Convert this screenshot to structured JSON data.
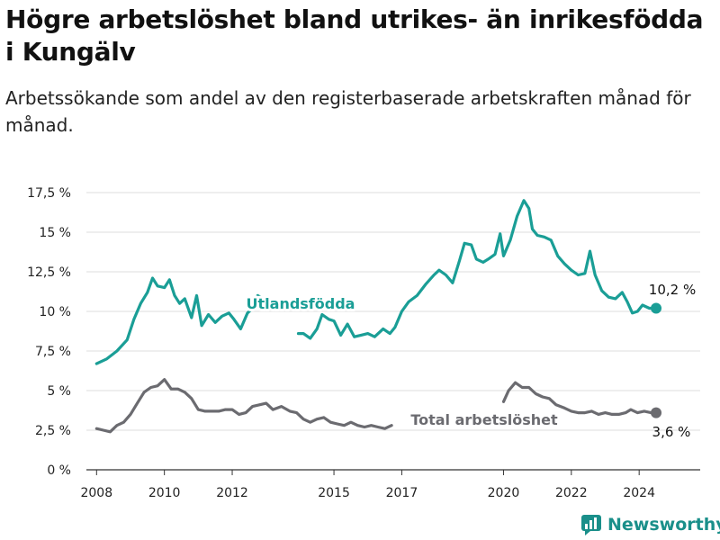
{
  "page": {
    "title": "Högre arbetslöshet bland utrikes- än inrikesfödda i Kungälv",
    "subtitle": "Arbetssökande som andel av den registerbaserade arbetskraften månad för månad."
  },
  "brand": {
    "name": "Newsworthy",
    "logo_icon": "bar-chart-bubble-icon",
    "color": "#1a8f8a"
  },
  "chart_data": {
    "type": "line",
    "title": "Högre arbetslöshet bland utrikes- än inrikesfödda i Kungälv",
    "subtitle": "Arbetssökande som andel av den registerbaserade arbetskraften månad för månad.",
    "xlabel": "",
    "ylabel": "",
    "x_ticks": [
      "2008",
      "2010",
      "2012",
      "2015",
      "2017",
      "2020",
      "2022",
      "2024"
    ],
    "y_ticks": [
      "0 %",
      "2,5 %",
      "5 %",
      "7,5 %",
      "10 %",
      "12,5 %",
      "15 %",
      "17,5 %"
    ],
    "xlim": [
      2007.7,
      2025.8
    ],
    "ylim": [
      0,
      17.5
    ],
    "grid": {
      "horizontal": true,
      "vertical": false
    },
    "legend": "inline labels",
    "series": [
      {
        "name": "Utlandsfödda",
        "color": "#1a9e96",
        "end_label": "10,2 %",
        "points": [
          [
            2008.0,
            6.7
          ],
          [
            2008.3,
            7.0
          ],
          [
            2008.6,
            7.5
          ],
          [
            2008.9,
            8.2
          ],
          [
            2009.1,
            9.5
          ],
          [
            2009.3,
            10.5
          ],
          [
            2009.5,
            11.2
          ],
          [
            2009.65,
            12.1
          ],
          [
            2009.8,
            11.6
          ],
          [
            2010.0,
            11.5
          ],
          [
            2010.15,
            12.0
          ],
          [
            2010.3,
            11.0
          ],
          [
            2010.45,
            10.5
          ],
          [
            2010.6,
            10.8
          ],
          [
            2010.8,
            9.6
          ],
          [
            2010.95,
            11.0
          ],
          [
            2011.1,
            9.1
          ],
          [
            2011.3,
            9.8
          ],
          [
            2011.5,
            9.3
          ],
          [
            2011.7,
            9.7
          ],
          [
            2011.9,
            9.9
          ],
          [
            2012.05,
            9.5
          ],
          [
            2012.25,
            8.9
          ],
          [
            2012.45,
            9.9
          ],
          [
            2012.6,
            10.2
          ],
          [
            2012.75,
            11.0
          ],
          [
            2012.9,
            10.8
          ]
        ]
      },
      {
        "name": "Utlandsfödda",
        "color": "#1a9e96",
        "points": [
          [
            2013.95,
            8.6
          ],
          [
            2014.1,
            8.6
          ],
          [
            2014.3,
            8.3
          ],
          [
            2014.5,
            8.9
          ],
          [
            2014.65,
            9.8
          ],
          [
            2014.85,
            9.5
          ],
          [
            2015.0,
            9.4
          ],
          [
            2015.2,
            8.5
          ],
          [
            2015.4,
            9.2
          ],
          [
            2015.6,
            8.4
          ],
          [
            2015.8,
            8.5
          ],
          [
            2016.0,
            8.6
          ],
          [
            2016.2,
            8.4
          ],
          [
            2016.45,
            8.9
          ],
          [
            2016.65,
            8.6
          ],
          [
            2016.8,
            9.0
          ],
          [
            2017.0,
            10.0
          ],
          [
            2017.2,
            10.6
          ],
          [
            2017.45,
            11.0
          ],
          [
            2017.7,
            11.7
          ],
          [
            2017.95,
            12.3
          ],
          [
            2018.1,
            12.6
          ],
          [
            2018.3,
            12.3
          ],
          [
            2018.5,
            11.8
          ],
          [
            2018.7,
            13.2
          ],
          [
            2018.85,
            14.3
          ],
          [
            2019.05,
            14.2
          ],
          [
            2019.2,
            13.3
          ],
          [
            2019.4,
            13.1
          ],
          [
            2019.55,
            13.3
          ],
          [
            2019.75,
            13.6
          ],
          [
            2019.9,
            14.9
          ],
          [
            2020.0,
            13.5
          ],
          [
            2020.2,
            14.5
          ],
          [
            2020.4,
            16.0
          ],
          [
            2020.6,
            17.0
          ],
          [
            2020.75,
            16.5
          ],
          [
            2020.85,
            15.2
          ],
          [
            2021.0,
            14.8
          ],
          [
            2021.2,
            14.7
          ],
          [
            2021.4,
            14.5
          ],
          [
            2021.6,
            13.5
          ],
          [
            2021.8,
            13.0
          ],
          [
            2022.0,
            12.6
          ],
          [
            2022.2,
            12.3
          ],
          [
            2022.4,
            12.4
          ],
          [
            2022.55,
            13.8
          ],
          [
            2022.7,
            12.3
          ],
          [
            2022.9,
            11.3
          ],
          [
            2023.1,
            10.9
          ],
          [
            2023.3,
            10.8
          ],
          [
            2023.5,
            11.2
          ],
          [
            2023.65,
            10.6
          ],
          [
            2023.8,
            9.9
          ],
          [
            2023.95,
            10.0
          ],
          [
            2024.1,
            10.4
          ],
          [
            2024.3,
            10.2
          ],
          [
            2024.5,
            10.2
          ]
        ]
      },
      {
        "name": "Total arbetslöshet",
        "color": "#6b6b70",
        "end_label": "3,6 %",
        "points": [
          [
            2008.0,
            2.6
          ],
          [
            2008.2,
            2.5
          ],
          [
            2008.4,
            2.4
          ],
          [
            2008.6,
            2.8
          ],
          [
            2008.8,
            3.0
          ],
          [
            2009.0,
            3.5
          ],
          [
            2009.2,
            4.2
          ],
          [
            2009.4,
            4.9
          ],
          [
            2009.6,
            5.2
          ],
          [
            2009.8,
            5.3
          ],
          [
            2010.0,
            5.7
          ],
          [
            2010.2,
            5.1
          ],
          [
            2010.4,
            5.1
          ],
          [
            2010.6,
            4.9
          ],
          [
            2010.8,
            4.5
          ],
          [
            2011.0,
            3.8
          ],
          [
            2011.2,
            3.7
          ],
          [
            2011.4,
            3.7
          ],
          [
            2011.6,
            3.7
          ],
          [
            2011.8,
            3.8
          ],
          [
            2012.0,
            3.8
          ],
          [
            2012.2,
            3.5
          ],
          [
            2012.4,
            3.6
          ],
          [
            2012.6,
            4.0
          ],
          [
            2012.8,
            4.1
          ],
          [
            2013.0,
            4.2
          ],
          [
            2013.2,
            3.8
          ],
          [
            2013.45,
            4.0
          ],
          [
            2013.7,
            3.7
          ],
          [
            2013.9,
            3.6
          ],
          [
            2014.1,
            3.2
          ],
          [
            2014.3,
            3.0
          ],
          [
            2014.5,
            3.2
          ],
          [
            2014.7,
            3.3
          ],
          [
            2014.9,
            3.0
          ],
          [
            2015.1,
            2.9
          ],
          [
            2015.3,
            2.8
          ],
          [
            2015.5,
            3.0
          ],
          [
            2015.7,
            2.8
          ],
          [
            2015.9,
            2.7
          ],
          [
            2016.1,
            2.8
          ],
          [
            2016.3,
            2.7
          ],
          [
            2016.5,
            2.6
          ],
          [
            2016.7,
            2.8
          ]
        ]
      },
      {
        "name": "Total arbetslöshet",
        "color": "#6b6b70",
        "points": [
          [
            2020.0,
            4.3
          ],
          [
            2020.15,
            5.0
          ],
          [
            2020.35,
            5.5
          ],
          [
            2020.55,
            5.2
          ],
          [
            2020.75,
            5.2
          ],
          [
            2020.95,
            4.8
          ],
          [
            2021.15,
            4.6
          ],
          [
            2021.35,
            4.5
          ],
          [
            2021.55,
            4.1
          ],
          [
            2021.8,
            3.9
          ],
          [
            2022.0,
            3.7
          ],
          [
            2022.2,
            3.6
          ],
          [
            2022.4,
            3.6
          ],
          [
            2022.6,
            3.7
          ],
          [
            2022.8,
            3.5
          ],
          [
            2023.0,
            3.6
          ],
          [
            2023.2,
            3.5
          ],
          [
            2023.4,
            3.5
          ],
          [
            2023.6,
            3.6
          ],
          [
            2023.75,
            3.8
          ],
          [
            2023.95,
            3.6
          ],
          [
            2024.15,
            3.7
          ],
          [
            2024.35,
            3.6
          ],
          [
            2024.5,
            3.6
          ]
        ]
      }
    ]
  }
}
